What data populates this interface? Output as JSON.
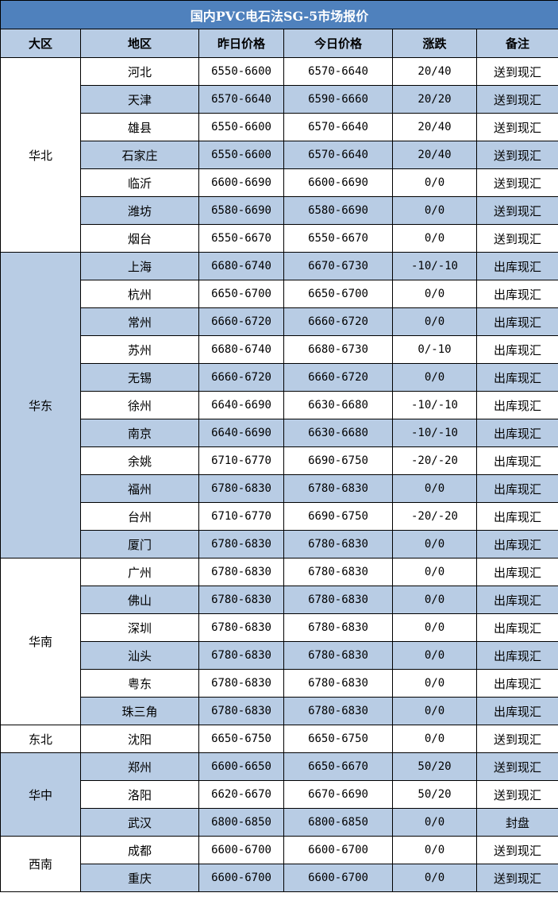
{
  "title": "国内PVC电石法SG-5市场报价",
  "headers": [
    "大区",
    "地区",
    "昨日价格",
    "今日价格",
    "涨跌",
    "备注"
  ],
  "colors": {
    "title_bg": "#4f81bd",
    "shade": "#b8cce4"
  },
  "groups": [
    {
      "region": "华北",
      "shaded": false,
      "rows": [
        {
          "city": "河北",
          "yesterday": "6550-6600",
          "today": "6570-6640",
          "change": "20/40",
          "note": "送到现汇",
          "shaded": false
        },
        {
          "city": "天津",
          "yesterday": "6570-6640",
          "today": "6590-6660",
          "change": "20/20",
          "note": "送到现汇",
          "shaded": true
        },
        {
          "city": "雄县",
          "yesterday": "6550-6600",
          "today": "6570-6640",
          "change": "20/40",
          "note": "送到现汇",
          "shaded": false
        },
        {
          "city": "石家庄",
          "yesterday": "6550-6600",
          "today": "6570-6640",
          "change": "20/40",
          "note": "送到现汇",
          "shaded": true
        },
        {
          "city": "临沂",
          "yesterday": "6600-6690",
          "today": "6600-6690",
          "change": "0/0",
          "note": "送到现汇",
          "shaded": false
        },
        {
          "city": "潍坊",
          "yesterday": "6580-6690",
          "today": "6580-6690",
          "change": "0/0",
          "note": "送到现汇",
          "shaded": true
        },
        {
          "city": "烟台",
          "yesterday": "6550-6670",
          "today": "6550-6670",
          "change": "0/0",
          "note": "送到现汇",
          "shaded": false
        }
      ]
    },
    {
      "region": "华东",
      "shaded": true,
      "rows": [
        {
          "city": "上海",
          "yesterday": "6680-6740",
          "today": "6670-6730",
          "change": "-10/-10",
          "note": "出库现汇",
          "shaded": true
        },
        {
          "city": "杭州",
          "yesterday": "6650-6700",
          "today": "6650-6700",
          "change": "0/0",
          "note": "出库现汇",
          "shaded": false
        },
        {
          "city": "常州",
          "yesterday": "6660-6720",
          "today": "6660-6720",
          "change": "0/0",
          "note": "出库现汇",
          "shaded": true
        },
        {
          "city": "苏州",
          "yesterday": "6680-6740",
          "today": "6680-6730",
          "change": "0/-10",
          "note": "出库现汇",
          "shaded": false
        },
        {
          "city": "无锡",
          "yesterday": "6660-6720",
          "today": "6660-6720",
          "change": "0/0",
          "note": "出库现汇",
          "shaded": true
        },
        {
          "city": "徐州",
          "yesterday": "6640-6690",
          "today": "6630-6680",
          "change": "-10/-10",
          "note": "出库现汇",
          "shaded": false
        },
        {
          "city": "南京",
          "yesterday": "6640-6690",
          "today": "6630-6680",
          "change": "-10/-10",
          "note": "出库现汇",
          "shaded": true
        },
        {
          "city": "余姚",
          "yesterday": "6710-6770",
          "today": "6690-6750",
          "change": "-20/-20",
          "note": "出库现汇",
          "shaded": false
        },
        {
          "city": "福州",
          "yesterday": "6780-6830",
          "today": "6780-6830",
          "change": "0/0",
          "note": "出库现汇",
          "shaded": true
        },
        {
          "city": "台州",
          "yesterday": "6710-6770",
          "today": "6690-6750",
          "change": "-20/-20",
          "note": "出库现汇",
          "shaded": false
        },
        {
          "city": "厦门",
          "yesterday": "6780-6830",
          "today": "6780-6830",
          "change": "0/0",
          "note": "出库现汇",
          "shaded": true
        }
      ]
    },
    {
      "region": "华南",
      "shaded": false,
      "rows": [
        {
          "city": "广州",
          "yesterday": "6780-6830",
          "today": "6780-6830",
          "change": "0/0",
          "note": "出库现汇",
          "shaded": false
        },
        {
          "city": "佛山",
          "yesterday": "6780-6830",
          "today": "6780-6830",
          "change": "0/0",
          "note": "出库现汇",
          "shaded": true
        },
        {
          "city": "深圳",
          "yesterday": "6780-6830",
          "today": "6780-6830",
          "change": "0/0",
          "note": "出库现汇",
          "shaded": false
        },
        {
          "city": "汕头",
          "yesterday": "6780-6830",
          "today": "6780-6830",
          "change": "0/0",
          "note": "出库现汇",
          "shaded": true
        },
        {
          "city": "粤东",
          "yesterday": "6780-6830",
          "today": "6780-6830",
          "change": "0/0",
          "note": "出库现汇",
          "shaded": false
        },
        {
          "city": "珠三角",
          "yesterday": "6780-6830",
          "today": "6780-6830",
          "change": "0/0",
          "note": "出库现汇",
          "shaded": true
        }
      ]
    },
    {
      "region": "东北",
      "shaded": false,
      "rows": [
        {
          "city": "沈阳",
          "yesterday": "6650-6750",
          "today": "6650-6750",
          "change": "0/0",
          "note": "送到现汇",
          "shaded": false
        }
      ]
    },
    {
      "region": "华中",
      "shaded": true,
      "rows": [
        {
          "city": "郑州",
          "yesterday": "6600-6650",
          "today": "6650-6670",
          "change": "50/20",
          "note": "送到现汇",
          "shaded": true
        },
        {
          "city": "洛阳",
          "yesterday": "6620-6670",
          "today": "6670-6690",
          "change": "50/20",
          "note": "送到现汇",
          "shaded": false
        },
        {
          "city": "武汉",
          "yesterday": "6800-6850",
          "today": "6800-6850",
          "change": "0/0",
          "note": "封盘",
          "shaded": true
        }
      ]
    },
    {
      "region": "西南",
      "shaded": false,
      "rows": [
        {
          "city": "成都",
          "yesterday": "6600-6700",
          "today": "6600-6700",
          "change": "0/0",
          "note": "送到现汇",
          "shaded": false
        },
        {
          "city": "重庆",
          "yesterday": "6600-6700",
          "today": "6600-6700",
          "change": "0/0",
          "note": "送到现汇",
          "shaded": true
        }
      ]
    }
  ]
}
